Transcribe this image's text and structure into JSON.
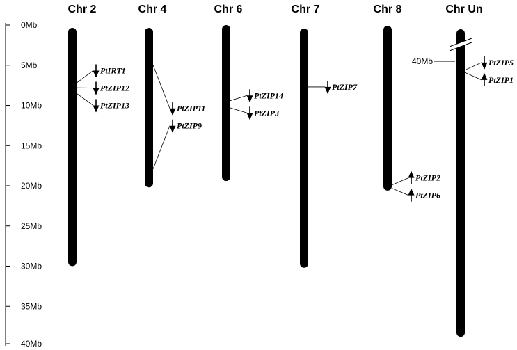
{
  "scale": {
    "unit": "Mb",
    "min": 0,
    "max": 40,
    "ticks": [
      {
        "value": 0,
        "label": "0Mb"
      },
      {
        "value": 5,
        "label": "5Mb"
      },
      {
        "value": 10,
        "label": "10Mb"
      },
      {
        "value": 15,
        "label": "15Mb"
      },
      {
        "value": 20,
        "label": "20Mb"
      },
      {
        "value": 25,
        "label": "25Mb"
      },
      {
        "value": 30,
        "label": "30Mb"
      },
      {
        "value": 35,
        "label": "35Mb"
      },
      {
        "value": 40,
        "label": "40Mb"
      }
    ]
  },
  "chromosomes": [
    {
      "name": "Chr 2",
      "length": 30,
      "genes": [
        {
          "name": "PtIRT1",
          "position": 7.2,
          "direction": "down"
        },
        {
          "name": "PtZIP12",
          "position": 7.8,
          "direction": "down"
        },
        {
          "name": "PtZIP13",
          "position": 8.5,
          "direction": "down"
        }
      ]
    },
    {
      "name": "Chr 4",
      "length": 20.2,
      "genes": [
        {
          "name": "PtZIP11",
          "position": 5.0,
          "direction": "down"
        },
        {
          "name": "PtZIP9",
          "position": 17.9,
          "direction": "down"
        }
      ]
    },
    {
      "name": "Chr 6",
      "length": 19.4,
      "genes": [
        {
          "name": "PtZIP14",
          "position": 9.4,
          "direction": "down"
        },
        {
          "name": "PtZIP3",
          "position": 10.3,
          "direction": "down"
        }
      ]
    },
    {
      "name": "Chr 7",
      "length": 30.2,
      "genes": [
        {
          "name": "PtZIP7",
          "position": 7.7,
          "direction": "down"
        }
      ]
    },
    {
      "name": "Chr 8",
      "length": 20.6,
      "genes": [
        {
          "name": "PtZIP2",
          "position": 19.9,
          "direction": "up"
        },
        {
          "name": "PtZIP6",
          "position": 20.3,
          "direction": "up"
        }
      ]
    },
    {
      "name": "Chr Un",
      "length": 38.8,
      "break_label": "40Mb",
      "break_position": 4.5,
      "genes": [
        {
          "name": "PtZIP5",
          "position": 5.6,
          "direction": "down"
        },
        {
          "name": "PtZIP1",
          "position": 5.9,
          "direction": "up"
        }
      ]
    }
  ]
}
